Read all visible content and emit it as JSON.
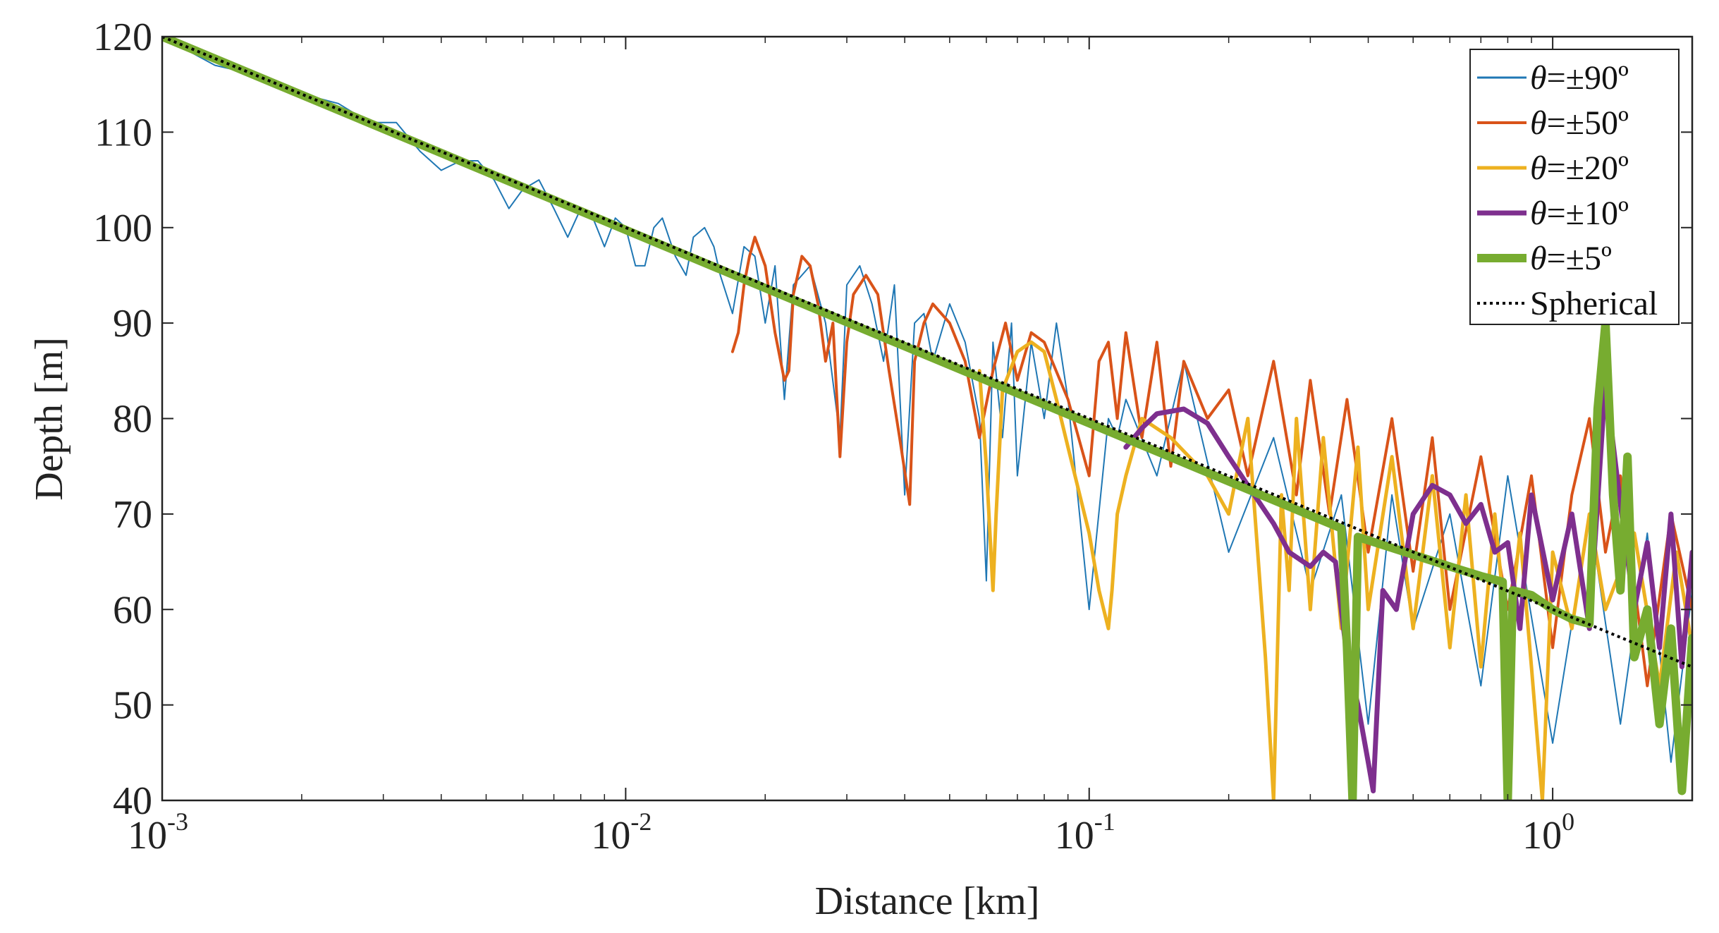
{
  "chart_data": {
    "type": "line",
    "title": "",
    "xlabel": "Distance [km]",
    "ylabel": "Depth [m]",
    "xscale": "log",
    "xlim": [
      0.001,
      2.0
    ],
    "ylim": [
      40,
      120
    ],
    "grid": false,
    "legend_position": "top-right",
    "x_ticks": [
      {
        "base": "10",
        "exp": "-3",
        "value": 0.001
      },
      {
        "base": "10",
        "exp": "-2",
        "value": 0.01
      },
      {
        "base": "10",
        "exp": "-1",
        "value": 0.1
      },
      {
        "base": "10",
        "exp": "0",
        "value": 1
      }
    ],
    "y_ticks": [
      "40",
      "50",
      "60",
      "70",
      "80",
      "90",
      "100",
      "110",
      "120"
    ],
    "series": [
      {
        "name": "θ=±90º",
        "label_prefix": "θ",
        "label_rest": "=±90º",
        "color": "#1f77b4",
        "width": 2,
        "x": [
          0.001,
          0.0013,
          0.0016,
          0.002,
          0.0024,
          0.0028,
          0.0032,
          0.0036,
          0.004,
          0.0044,
          0.0048,
          0.0052,
          0.0056,
          0.006,
          0.0065,
          0.007,
          0.0075,
          0.008,
          0.0085,
          0.009,
          0.0095,
          0.01,
          0.0105,
          0.011,
          0.0115,
          0.012,
          0.0128,
          0.0135,
          0.014,
          0.0148,
          0.0155,
          0.016,
          0.017,
          0.018,
          0.019,
          0.02,
          0.021,
          0.022,
          0.023,
          0.025,
          0.027,
          0.029,
          0.03,
          0.032,
          0.034,
          0.036,
          0.038,
          0.04,
          0.042,
          0.044,
          0.046,
          0.05,
          0.054,
          0.058,
          0.06,
          0.062,
          0.065,
          0.068,
          0.07,
          0.075,
          0.08,
          0.085,
          0.09,
          0.1,
          0.11,
          0.115,
          0.12,
          0.14,
          0.16,
          0.2,
          0.25,
          0.3,
          0.35,
          0.4,
          0.45,
          0.5,
          0.6,
          0.7,
          0.8,
          1.0,
          1.2,
          1.4,
          1.6,
          1.8,
          2.0
        ],
        "values": [
          120,
          117,
          116,
          114,
          113,
          111,
          111,
          108,
          106,
          107,
          107,
          105,
          102,
          104,
          105,
          102,
          99,
          102,
          101,
          98,
          101,
          100,
          96,
          96,
          100,
          101,
          97,
          95,
          99,
          100,
          98,
          95,
          91,
          98,
          97,
          90,
          96,
          82,
          94,
          96,
          90,
          78,
          94,
          96,
          92,
          86,
          94,
          72,
          90,
          91,
          86,
          92,
          88,
          80,
          63,
          88,
          78,
          90,
          74,
          88,
          80,
          90,
          82,
          60,
          80,
          78,
          82,
          74,
          86,
          66,
          78,
          62,
          72,
          48,
          72,
          58,
          70,
          52,
          74,
          46,
          70,
          48,
          68,
          44,
          62
        ]
      },
      {
        "name": "θ=±50º",
        "label_prefix": "θ",
        "label_rest": "=±50º",
        "color": "#d95319",
        "width": 4,
        "x": [
          0.017,
          0.0175,
          0.018,
          0.0185,
          0.019,
          0.02,
          0.021,
          0.022,
          0.0225,
          0.023,
          0.024,
          0.025,
          0.026,
          0.027,
          0.028,
          0.029,
          0.03,
          0.031,
          0.033,
          0.035,
          0.037,
          0.039,
          0.041,
          0.042,
          0.044,
          0.046,
          0.05,
          0.054,
          0.058,
          0.062,
          0.066,
          0.07,
          0.075,
          0.08,
          0.09,
          0.1,
          0.105,
          0.11,
          0.115,
          0.12,
          0.13,
          0.14,
          0.15,
          0.16,
          0.18,
          0.2,
          0.22,
          0.25,
          0.28,
          0.3,
          0.33,
          0.36,
          0.4,
          0.45,
          0.5,
          0.55,
          0.6,
          0.7,
          0.8,
          0.9,
          1.0,
          1.1,
          1.2,
          1.3,
          1.4,
          1.6,
          1.8,
          2.0
        ],
        "values": [
          87,
          89,
          94,
          97,
          99,
          96,
          89,
          84,
          85,
          93,
          97,
          96,
          92,
          86,
          90,
          76,
          88,
          93,
          95,
          93,
          85,
          78,
          71,
          86,
          90,
          92,
          90,
          86,
          78,
          85,
          90,
          84,
          89,
          88,
          82,
          74,
          86,
          88,
          80,
          89,
          78,
          88,
          75,
          86,
          80,
          83,
          74,
          86,
          72,
          84,
          70,
          82,
          66,
          80,
          64,
          78,
          60,
          76,
          60,
          74,
          56,
          72,
          80,
          66,
          74,
          52,
          70,
          60
        ]
      },
      {
        "name": "θ=±20º",
        "label_prefix": "θ",
        "label_rest": "=±20º",
        "color": "#edb120",
        "width": 5,
        "x": [
          0.058,
          0.06,
          0.062,
          0.063,
          0.065,
          0.07,
          0.075,
          0.08,
          0.085,
          0.09,
          0.1,
          0.105,
          0.11,
          0.112,
          0.115,
          0.12,
          0.13,
          0.15,
          0.18,
          0.2,
          0.22,
          0.24,
          0.25,
          0.26,
          0.27,
          0.28,
          0.3,
          0.32,
          0.35,
          0.38,
          0.4,
          0.45,
          0.5,
          0.55,
          0.6,
          0.65,
          0.7,
          0.75,
          0.8,
          0.85,
          0.9,
          0.95,
          1.0,
          1.1,
          1.2,
          1.3,
          1.5,
          1.7,
          1.85,
          2.0
        ],
        "values": [
          85,
          75,
          62,
          70,
          83,
          87,
          88,
          87,
          82,
          77,
          68,
          62,
          58,
          62,
          70,
          74,
          80,
          78,
          74,
          70,
          80,
          55,
          40,
          72,
          62,
          80,
          60,
          78,
          58,
          77,
          60,
          76,
          58,
          74,
          56,
          72,
          54,
          70,
          56,
          68,
          54,
          40,
          66,
          58,
          70,
          60,
          68,
          52,
          66,
          56
        ]
      },
      {
        "name": "θ=±10º",
        "label_prefix": "θ",
        "label_rest": "=±10º",
        "color": "#7e2f8e",
        "width": 7,
        "x": [
          0.12,
          0.13,
          0.14,
          0.16,
          0.18,
          0.2,
          0.22,
          0.25,
          0.27,
          0.3,
          0.32,
          0.34,
          0.36,
          0.38,
          0.4,
          0.41,
          0.43,
          0.46,
          0.5,
          0.55,
          0.6,
          0.65,
          0.7,
          0.75,
          0.8,
          0.85,
          0.9,
          1.0,
          1.1,
          1.2,
          1.3,
          1.4,
          1.5,
          1.6,
          1.7,
          1.8,
          1.9,
          2.0
        ],
        "values": [
          77,
          79,
          80.5,
          81,
          79.5,
          76,
          73,
          69,
          66,
          64.5,
          66,
          65,
          55,
          50,
          44,
          41,
          62,
          60,
          70,
          73,
          72,
          69,
          71,
          66,
          67,
          58,
          72,
          61,
          70,
          58,
          84,
          71,
          60,
          67,
          56,
          70,
          54,
          66
        ]
      },
      {
        "name": "θ=±5º",
        "label_prefix": "θ",
        "label_rest": "=±5º",
        "color": "#77ac30",
        "width": 12,
        "x": [
          0.001,
          0.35,
          0.36,
          0.37,
          0.38,
          0.6,
          0.7,
          0.78,
          0.8,
          0.82,
          0.9,
          1.0,
          1.1,
          1.2,
          1.25,
          1.3,
          1.35,
          1.4,
          1.45,
          1.5,
          1.6,
          1.7,
          1.8,
          1.9,
          2.0
        ],
        "values": [
          120,
          68.5,
          56,
          40,
          67.6,
          64.5,
          63.5,
          62.9,
          40,
          62,
          61.5,
          60,
          59,
          58.5,
          81,
          90,
          72,
          62,
          76,
          55,
          60,
          48,
          58,
          41,
          57
        ]
      },
      {
        "name": "Spherical",
        "label_prefix": "",
        "label_rest": "Spherical",
        "color": "#000000",
        "width": 4,
        "dashed": true,
        "x": [
          0.001,
          2.0
        ],
        "values": [
          120,
          53.98
        ]
      }
    ]
  }
}
